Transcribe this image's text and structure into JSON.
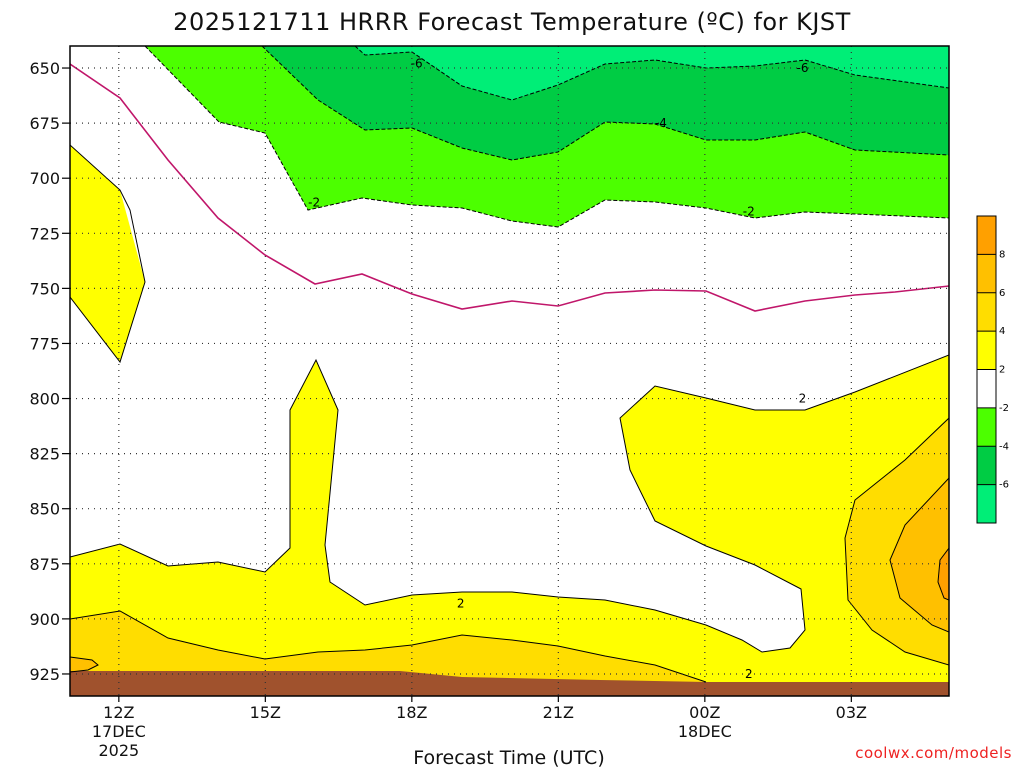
{
  "chart_data": {
    "type": "heatmap",
    "title": "2025121711 HRRR Forecast Temperature (ºC) for KJST",
    "xlabel": "Forecast Time (UTC)",
    "ylabel": "",
    "y_ticks": [
      "650",
      "675",
      "700",
      "725",
      "750",
      "775",
      "800",
      "825",
      "850",
      "875",
      "900",
      "925"
    ],
    "y_range": [
      640,
      935
    ],
    "x_ticks": [
      {
        "hour": 12,
        "label": "12Z",
        "sub1": "17DEC",
        "sub2": "2025"
      },
      {
        "hour": 15,
        "label": "15Z",
        "sub1": "",
        "sub2": ""
      },
      {
        "hour": 18,
        "label": "18Z",
        "sub1": "",
        "sub2": ""
      },
      {
        "hour": 21,
        "label": "21Z",
        "sub1": "",
        "sub2": ""
      },
      {
        "hour": 24,
        "label": "00Z",
        "sub1": "18DEC",
        "sub2": ""
      },
      {
        "hour": 27,
        "label": "03Z",
        "sub1": "",
        "sub2": ""
      }
    ],
    "x_range": [
      11,
      29
    ],
    "grid": true,
    "zero_line_color": "#c0166a",
    "colorbar": {
      "levels": [
        "8",
        "6",
        "4",
        "2",
        "-2",
        "-4",
        "-6"
      ],
      "colors": [
        "#ffa000",
        "#ffc000",
        "#ffdd00",
        "#ffff00",
        "#ffffff",
        "#4cff00",
        "#00cc44",
        "#00ee77"
      ]
    },
    "contour_labels": [
      {
        "text": "-6",
        "hour": 18.1,
        "p": 648
      },
      {
        "text": "-6",
        "hour": 26.0,
        "p": 650
      },
      {
        "text": "-4",
        "hour": 23.1,
        "p": 675
      },
      {
        "text": "-2",
        "hour": 16.0,
        "p": 711
      },
      {
        "text": "-2",
        "hour": 24.9,
        "p": 715
      },
      {
        "text": "2",
        "hour": 26.0,
        "p": 800
      },
      {
        "text": "2",
        "hour": 19.0,
        "p": 893
      },
      {
        "text": "2",
        "hour": 24.9,
        "p": 925
      }
    ],
    "legend": "colorbar right"
  },
  "credit": "coolwx.com/models"
}
